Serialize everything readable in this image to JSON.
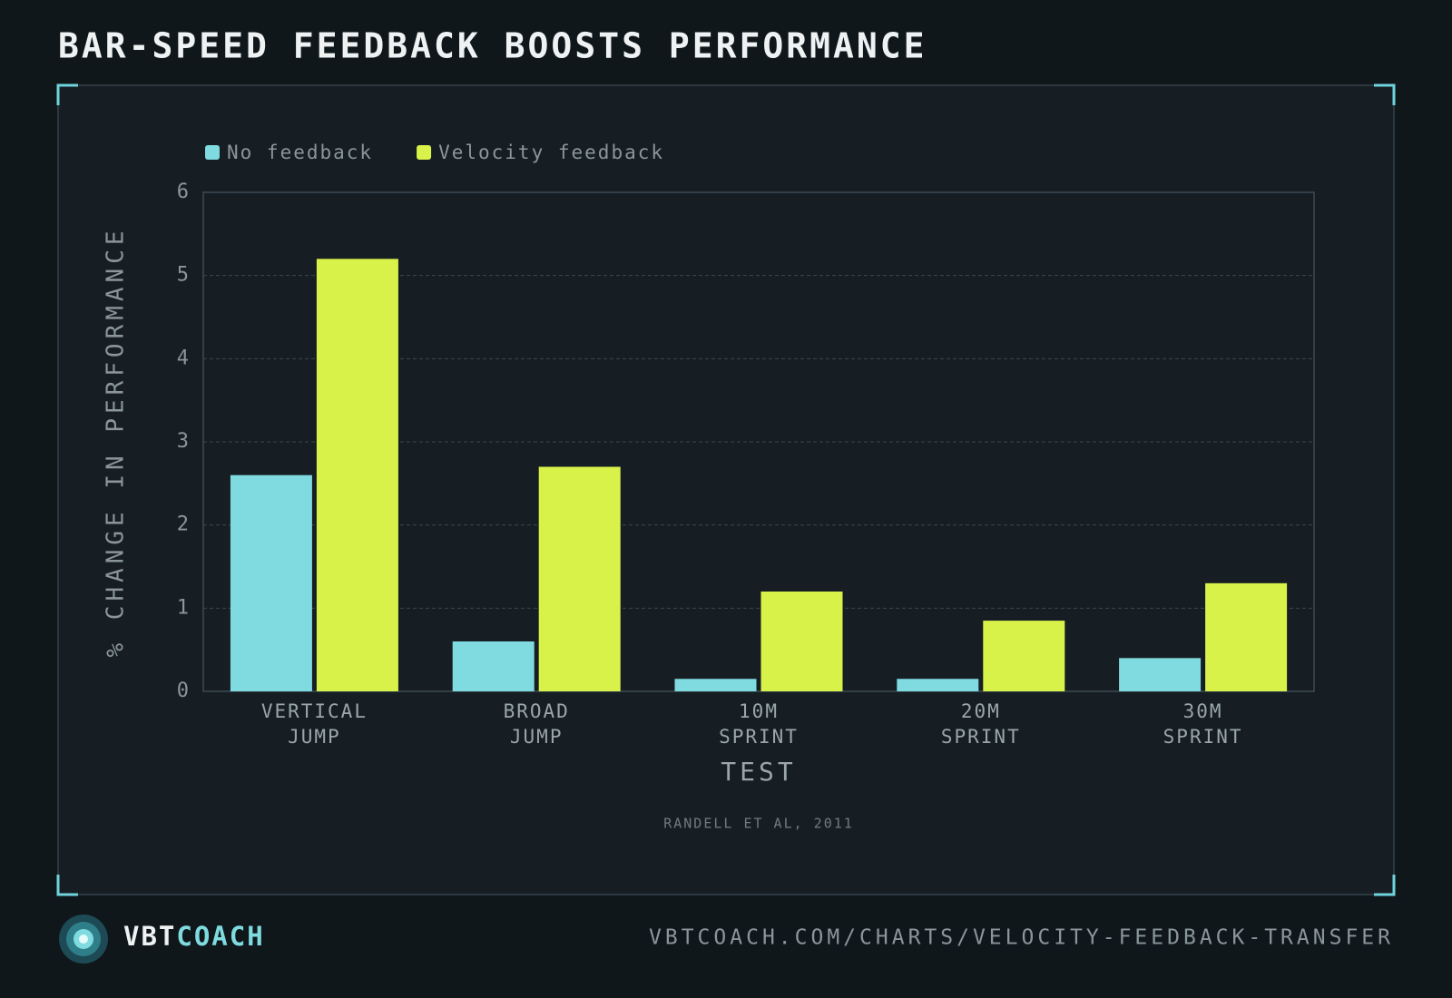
{
  "chart_data": {
    "type": "bar",
    "title": "BAR-SPEED FEEDBACK BOOSTS PERFORMANCE",
    "y_label": "% CHANGE IN PERFORMANCE",
    "x_label": "TEST",
    "source": "RANDELL ET AL, 2011",
    "categories": [
      "VERTICAL JUMP",
      "BROAD JUMP",
      "10M SPRINT",
      "20M SPRINT",
      "30M SPRINT"
    ],
    "series": [
      {
        "name": "No feedback",
        "color": "#7fdbdf",
        "values": [
          2.6,
          0.6,
          0.15,
          0.15,
          0.4
        ]
      },
      {
        "name": "Velocity feedback",
        "color": "#d9f24a",
        "values": [
          5.2,
          2.7,
          1.2,
          0.85,
          1.3
        ]
      }
    ],
    "ylim": [
      0,
      6
    ],
    "yticks": [
      0,
      1,
      2,
      3,
      4,
      5,
      6
    ],
    "grid": true,
    "legend": "top-left"
  },
  "footer": {
    "brand_a": "VBT",
    "brand_b": "COACH",
    "url": "VBTCOACH.COM/CHARTS/VELOCITY-FEEDBACK-TRANSFER"
  }
}
